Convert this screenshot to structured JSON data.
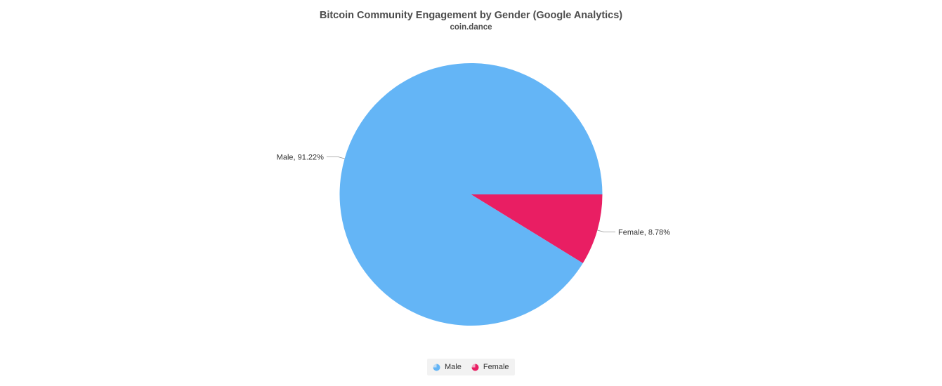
{
  "chart_data": {
    "type": "pie",
    "title": "Bitcoin Community Engagement by Gender (Google Analytics)",
    "subtitle": "coin.dance",
    "slices": [
      {
        "name": "Male",
        "value": 91.22,
        "label": "Male, 91.22%",
        "color": "#64b5f6"
      },
      {
        "name": "Female",
        "value": 8.78,
        "label": "Female, 8.78%",
        "color": "#e91e63"
      }
    ],
    "legend": {
      "placement": "bottom-center",
      "items": [
        {
          "name": "Male",
          "label": "Male",
          "color": "#64b5f6"
        },
        {
          "name": "Female",
          "label": "Female",
          "color": "#e91e63"
        }
      ]
    }
  }
}
